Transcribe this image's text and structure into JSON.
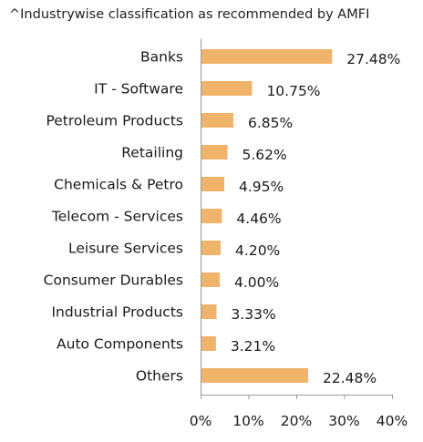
{
  "subtitle": "^Industrywise classification as recommended by AMFI",
  "colors": {
    "bar": "#f0b36a",
    "axis": "#9a9a9a",
    "text": "#1a1a1a"
  },
  "chart_data": {
    "type": "bar",
    "orientation": "horizontal",
    "title": "^Industrywise classification as recommended by AMFI",
    "categories": [
      "Banks",
      "IT - Software",
      "Petroleum Products",
      "Retailing",
      "Chemicals & Petro",
      "Telecom - Services",
      "Leisure Services",
      "Consumer Durables",
      "Industrial Products",
      "Auto Components",
      "Others"
    ],
    "values": [
      27.48,
      10.75,
      6.85,
      5.62,
      4.95,
      4.46,
      4.2,
      4.0,
      3.33,
      3.21,
      22.48
    ],
    "value_labels": [
      "27.48%",
      "10.75%",
      "6.85%",
      "5.62%",
      "4.95%",
      "4.46%",
      "4.20%",
      "4.00%",
      "3.33%",
      "3.21%",
      "22.48%"
    ],
    "xlim": [
      0,
      40
    ],
    "x_ticks": [
      0,
      10,
      20,
      30,
      40
    ],
    "x_tick_labels": [
      "0%",
      "10%",
      "20%",
      "30%",
      "40%"
    ],
    "xlabel": "",
    "ylabel": "",
    "grid": false,
    "legend": "none"
  }
}
